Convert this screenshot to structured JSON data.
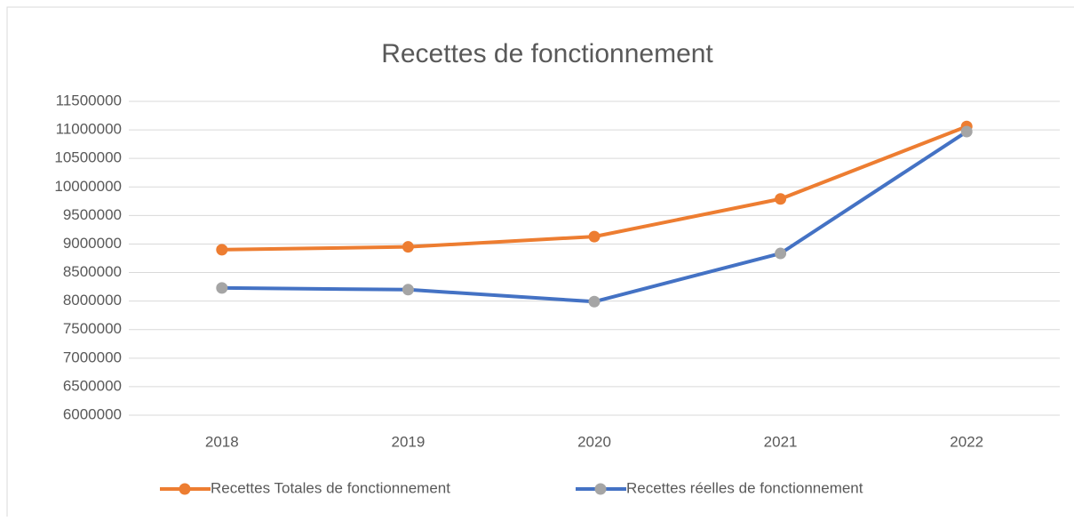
{
  "chart_data": {
    "type": "line",
    "title": "Recettes de fonctionnement",
    "categories": [
      "2018",
      "2019",
      "2020",
      "2021",
      "2022"
    ],
    "series": [
      {
        "name": "Recettes Totales de fonctionnement",
        "color": "#ed7d31",
        "marker_color": "#ed7d31",
        "values": [
          8900000,
          8950000,
          9130000,
          9790000,
          11060000
        ]
      },
      {
        "name": "Recettes réelles de fonctionnement",
        "color": "#4472c4",
        "marker_color": "#a5a5a5",
        "values": [
          8230000,
          8200000,
          7990000,
          8835000,
          10970000
        ]
      }
    ],
    "ylim": [
      6000000,
      11500000
    ],
    "yticks": [
      6000000,
      6500000,
      7000000,
      7500000,
      8000000,
      8500000,
      9000000,
      9500000,
      10000000,
      10500000,
      11000000,
      11500000
    ],
    "grid": true,
    "legend": "bottom"
  }
}
